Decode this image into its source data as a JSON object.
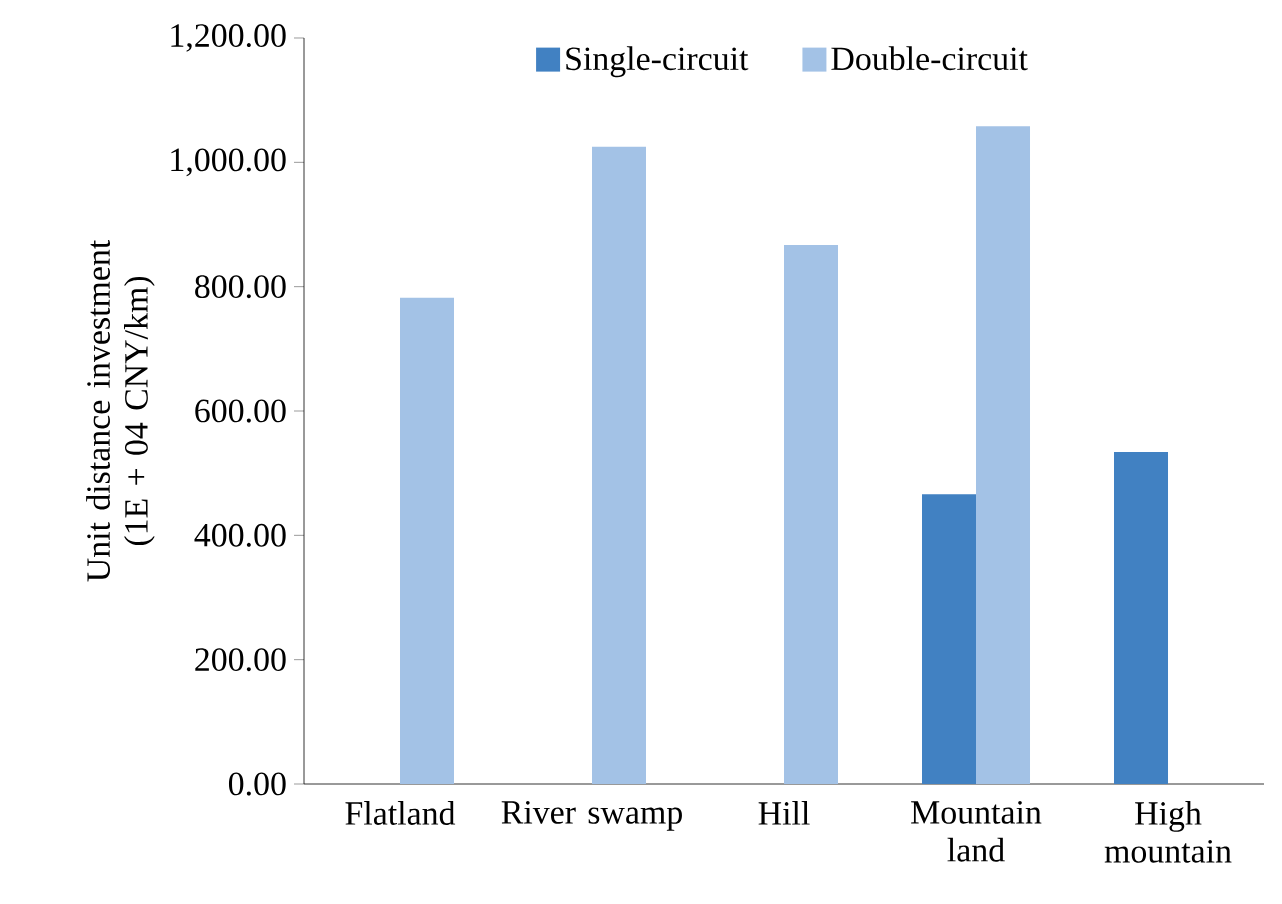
{
  "chart_data": {
    "type": "bar",
    "ylabel": "Unit distance investment (1E + 04 CNY/km)",
    "categories": [
      "Flatland",
      "River swamp",
      "Hill",
      "Mountain land",
      "High mountain"
    ],
    "series": [
      {
        "name": "Single-circuit",
        "color": "#4181c2",
        "values": [
          null,
          null,
          null,
          466,
          534
        ]
      },
      {
        "name": "Double-circuit",
        "color": "#a3c2e6",
        "values": [
          782,
          1025,
          867,
          1058,
          null
        ]
      }
    ],
    "ylim": [
      0,
      1200
    ],
    "yticks": [
      {
        "value": 0,
        "label": "0.00"
      },
      {
        "value": 200,
        "label": "200.00"
      },
      {
        "value": 400,
        "label": "400.00"
      },
      {
        "value": 600,
        "label": "600.00"
      },
      {
        "value": 800,
        "label": "800.00"
      },
      {
        "value": 1000,
        "label": "1,000.00"
      },
      {
        "value": 1200,
        "label": "1,200.00"
      }
    ],
    "grid": false,
    "legend": "top"
  }
}
